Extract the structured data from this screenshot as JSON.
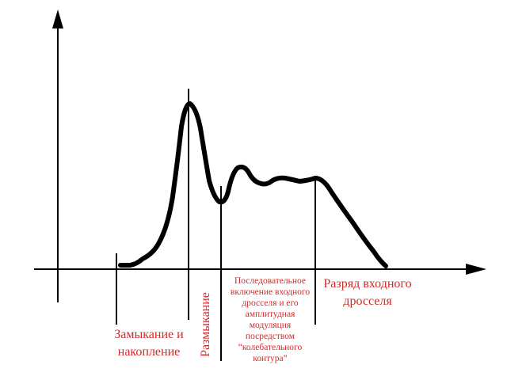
{
  "diagram": {
    "colors": {
      "axis": "#000000",
      "curve": "#000000",
      "label": "#d22b2b"
    },
    "phases": {
      "phase1": [
        "Замыкание и",
        "накопление"
      ],
      "phase2": "Размыкание",
      "phase3": [
        "Последовательное",
        "включение входного",
        "дросселя и его",
        "амплитудная",
        "модуляция",
        "посредством",
        "“колебательного",
        "контура”"
      ],
      "phase4": [
        "Разряд входного",
        "дросселя"
      ]
    }
  }
}
